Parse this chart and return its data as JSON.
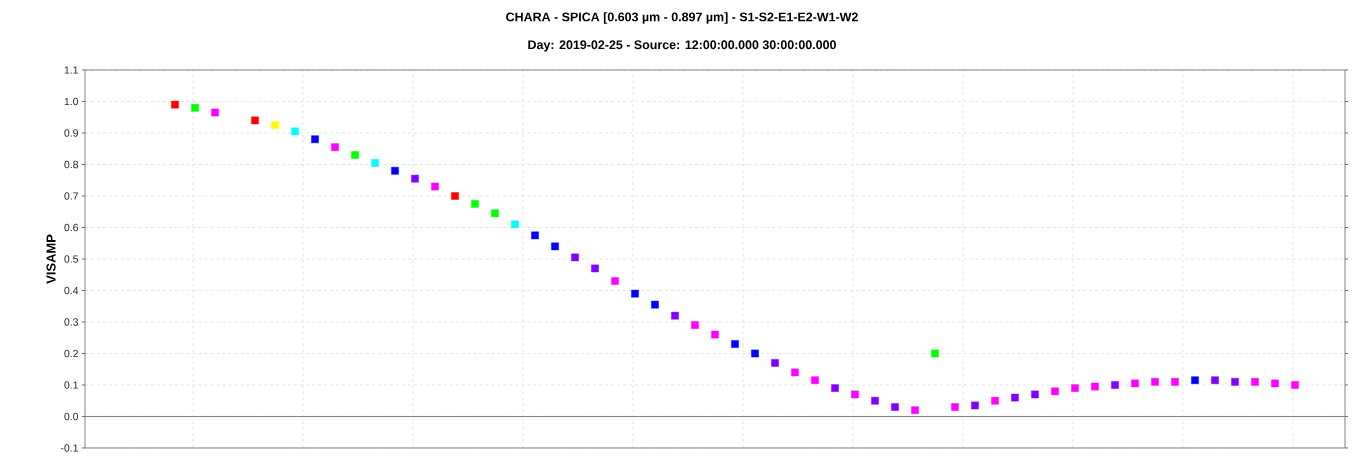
{
  "chart_data": {
    "type": "scatter",
    "title": "CHARA - SPICA [0.603 µm - 0.897 µm] - S1-S2-E1-E2-W1-W2",
    "subtitle": "Day: 2019-02-25 - Source: 12:00:00.000 30:00:00.000",
    "ylabel": "VISAMP",
    "categories": [
      null,
      null,
      null,
      null,
      null,
      null,
      null,
      null,
      null,
      null,
      null,
      null,
      null,
      null,
      null,
      null,
      null,
      null,
      null,
      null,
      null,
      null,
      null,
      null,
      null,
      null,
      null,
      null,
      null,
      null,
      null,
      null,
      null,
      null,
      null,
      null,
      null,
      null,
      null,
      null,
      null,
      null,
      null,
      null,
      null,
      null,
      null,
      null,
      null,
      null,
      null,
      null,
      null,
      null,
      null,
      null,
      null,
      null,
      null,
      null,
      null,
      null,
      null
    ],
    "values": [
      null,
      null,
      null,
      null,
      0.99,
      0.98,
      0.965,
      null,
      0.94,
      0.925,
      0.905,
      0.88,
      0.855,
      0.83,
      0.805,
      0.78,
      0.755,
      0.73,
      0.7,
      0.675,
      0.645,
      0.61,
      0.575,
      0.54,
      0.505,
      0.47,
      0.43,
      0.39,
      0.355,
      0.32,
      0.29,
      0.26,
      0.23,
      0.2,
      0.17,
      0.14,
      0.115,
      0.09,
      0.07,
      0.05,
      0.03,
      0.02,
      0.2,
      0.03,
      0.035,
      0.05,
      0.06,
      0.07,
      0.08,
      0.09,
      0.095,
      0.1,
      0.105,
      0.11,
      0.11,
      0.115,
      0.115,
      0.11,
      0.11,
      0.105,
      0.1,
      null,
      null
    ],
    "colors": [
      "#ff0000",
      "#ff0000",
      "#ff0000",
      "#ff0000",
      "#ff0000",
      "#00ff00",
      "#ff00ff",
      "#ff00ff",
      "#ff0000",
      "#ffff00",
      "#00ffff",
      "#0000ff",
      "#ff00ff",
      "#00ff00",
      "#00ffff",
      "#0000ff",
      "#8000ff",
      "#ff00ff",
      "#ff0000",
      "#00ff00",
      "#00ff00",
      "#00ffff",
      "#0000ff",
      "#0000ff",
      "#8000ff",
      "#8000ff",
      "#ff00ff",
      "#0000ff",
      "#0000ff",
      "#8000ff",
      "#ff00ff",
      "#ff00ff",
      "#0000ff",
      "#0000ff",
      "#8000ff",
      "#ff00ff",
      "#ff00ff",
      "#8000ff",
      "#ff00ff",
      "#8000ff",
      "#8000ff",
      "#ff00ff",
      "#00ff00",
      "#ff00ff",
      "#8000ff",
      "#ff00ff",
      "#8000ff",
      "#8000ff",
      "#ff00ff",
      "#ff00ff",
      "#ff00ff",
      "#8000ff",
      "#ff00ff",
      "#ff00ff",
      "#ff00ff",
      "#0000ff",
      "#8000ff",
      "#8000ff",
      "#ff00ff",
      "#ff00ff",
      "#ff00ff",
      "#ff00ff",
      "#ff00ff"
    ],
    "ylim": [
      -0.1,
      1.1
    ],
    "yticks": [
      -0.1,
      {
        "value": 0,
        "label": "0.0"
      },
      0.1,
      0.2,
      0.3,
      0.4,
      0.5,
      0.6,
      0.7,
      0.8,
      0.9,
      {
        "value": 1,
        "label": "1.0"
      },
      1.1
    ],
    "ref_lines": [
      {
        "axis": "y",
        "value": 0,
        "color": "#808080"
      }
    ],
    "grid": true,
    "marker": "square"
  }
}
